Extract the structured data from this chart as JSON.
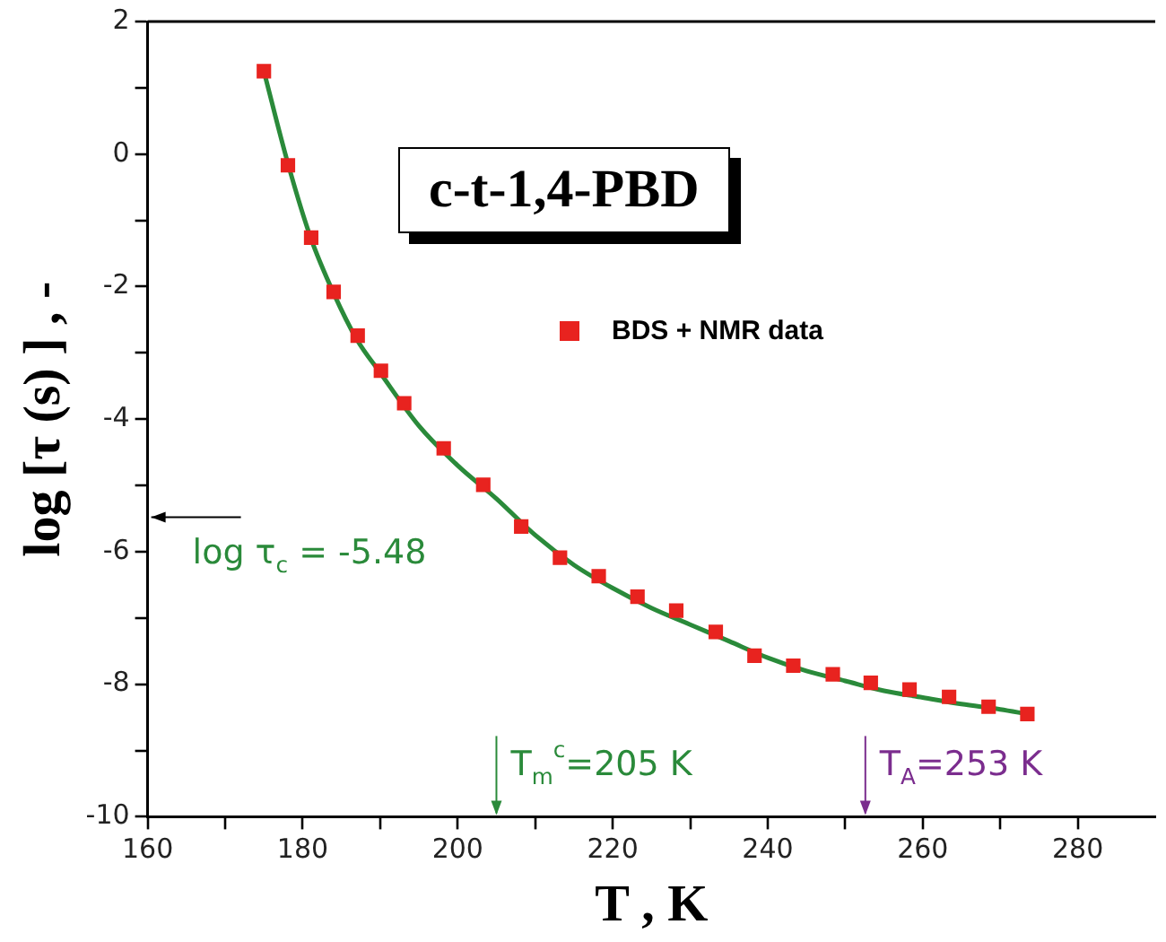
{
  "chart_data": {
    "type": "scatter",
    "title": "c-t-1,4-PBD",
    "xlabel": "T , K",
    "ylabel": "log [τ (s) ] , -",
    "series": [
      {
        "name": "BDS + NMR data",
        "color": "#e8231f",
        "marker": "square",
        "x": [
          175.0,
          178.1,
          181.1,
          184.0,
          187.1,
          190.1,
          193.1,
          198.2,
          203.3,
          208.2,
          213.2,
          218.2,
          223.2,
          228.2,
          233.3,
          238.3,
          243.3,
          248.4,
          253.3,
          258.3,
          263.4,
          268.5,
          273.5
        ],
        "values": [
          1.25,
          -0.17,
          -1.26,
          -2.08,
          -2.74,
          -3.27,
          -3.76,
          -4.44,
          -4.99,
          -5.62,
          -6.09,
          -6.37,
          -6.68,
          -6.89,
          -7.21,
          -7.57,
          -7.72,
          -7.85,
          -7.98,
          -8.08,
          -8.19,
          -8.34,
          -8.45
        ]
      },
      {
        "type": "line",
        "color": "#2a8a3a",
        "marker": "none",
        "x": [
          175,
          178,
          181,
          184,
          187,
          190,
          195,
          200,
          205,
          210,
          215,
          220,
          225,
          230,
          235,
          240,
          245,
          250,
          255,
          260,
          265,
          270,
          273.5
        ],
        "values": [
          1.25,
          -0.1,
          -1.25,
          -2.1,
          -2.8,
          -3.3,
          -4.1,
          -4.7,
          -5.2,
          -5.75,
          -6.2,
          -6.55,
          -6.85,
          -7.1,
          -7.35,
          -7.6,
          -7.8,
          -7.95,
          -8.1,
          -8.2,
          -8.3,
          -8.38,
          -8.45
        ]
      }
    ],
    "xlim": [
      160,
      290
    ],
    "xticks": [
      160,
      {
        "value": 170,
        "label": null
      },
      180,
      {
        "value": 190,
        "label": null
      },
      200,
      {
        "value": 210,
        "label": null
      },
      220,
      {
        "value": 230,
        "label": null
      },
      240,
      {
        "value": 250,
        "label": null
      },
      260,
      {
        "value": 270,
        "label": null
      },
      280
    ],
    "ylim": [
      -10,
      2
    ],
    "yticks": [
      -10,
      {
        "value": -9,
        "label": null
      },
      -8,
      {
        "value": -7,
        "label": null
      },
      -6,
      {
        "value": -5,
        "label": null
      },
      -4,
      {
        "value": -3,
        "label": null
      },
      -2,
      {
        "value": -1,
        "label": null
      },
      0,
      {
        "value": 1,
        "label": null
      },
      2
    ],
    "ref_lines": [
      {
        "axis": "y",
        "value": -5.48,
        "label": "log τ$_{c}$ = -5.48",
        "color": "#000000"
      },
      {
        "axis": "x",
        "value": 205,
        "label": "T$_{m}$$^{c}$=205 K",
        "color": "#2a8a3a"
      },
      {
        "axis": "x",
        "value": 252.6,
        "label": "T$_{A}$=253 K",
        "color": "#7b2d8e"
      }
    ],
    "grid": false,
    "legend": "top right"
  }
}
